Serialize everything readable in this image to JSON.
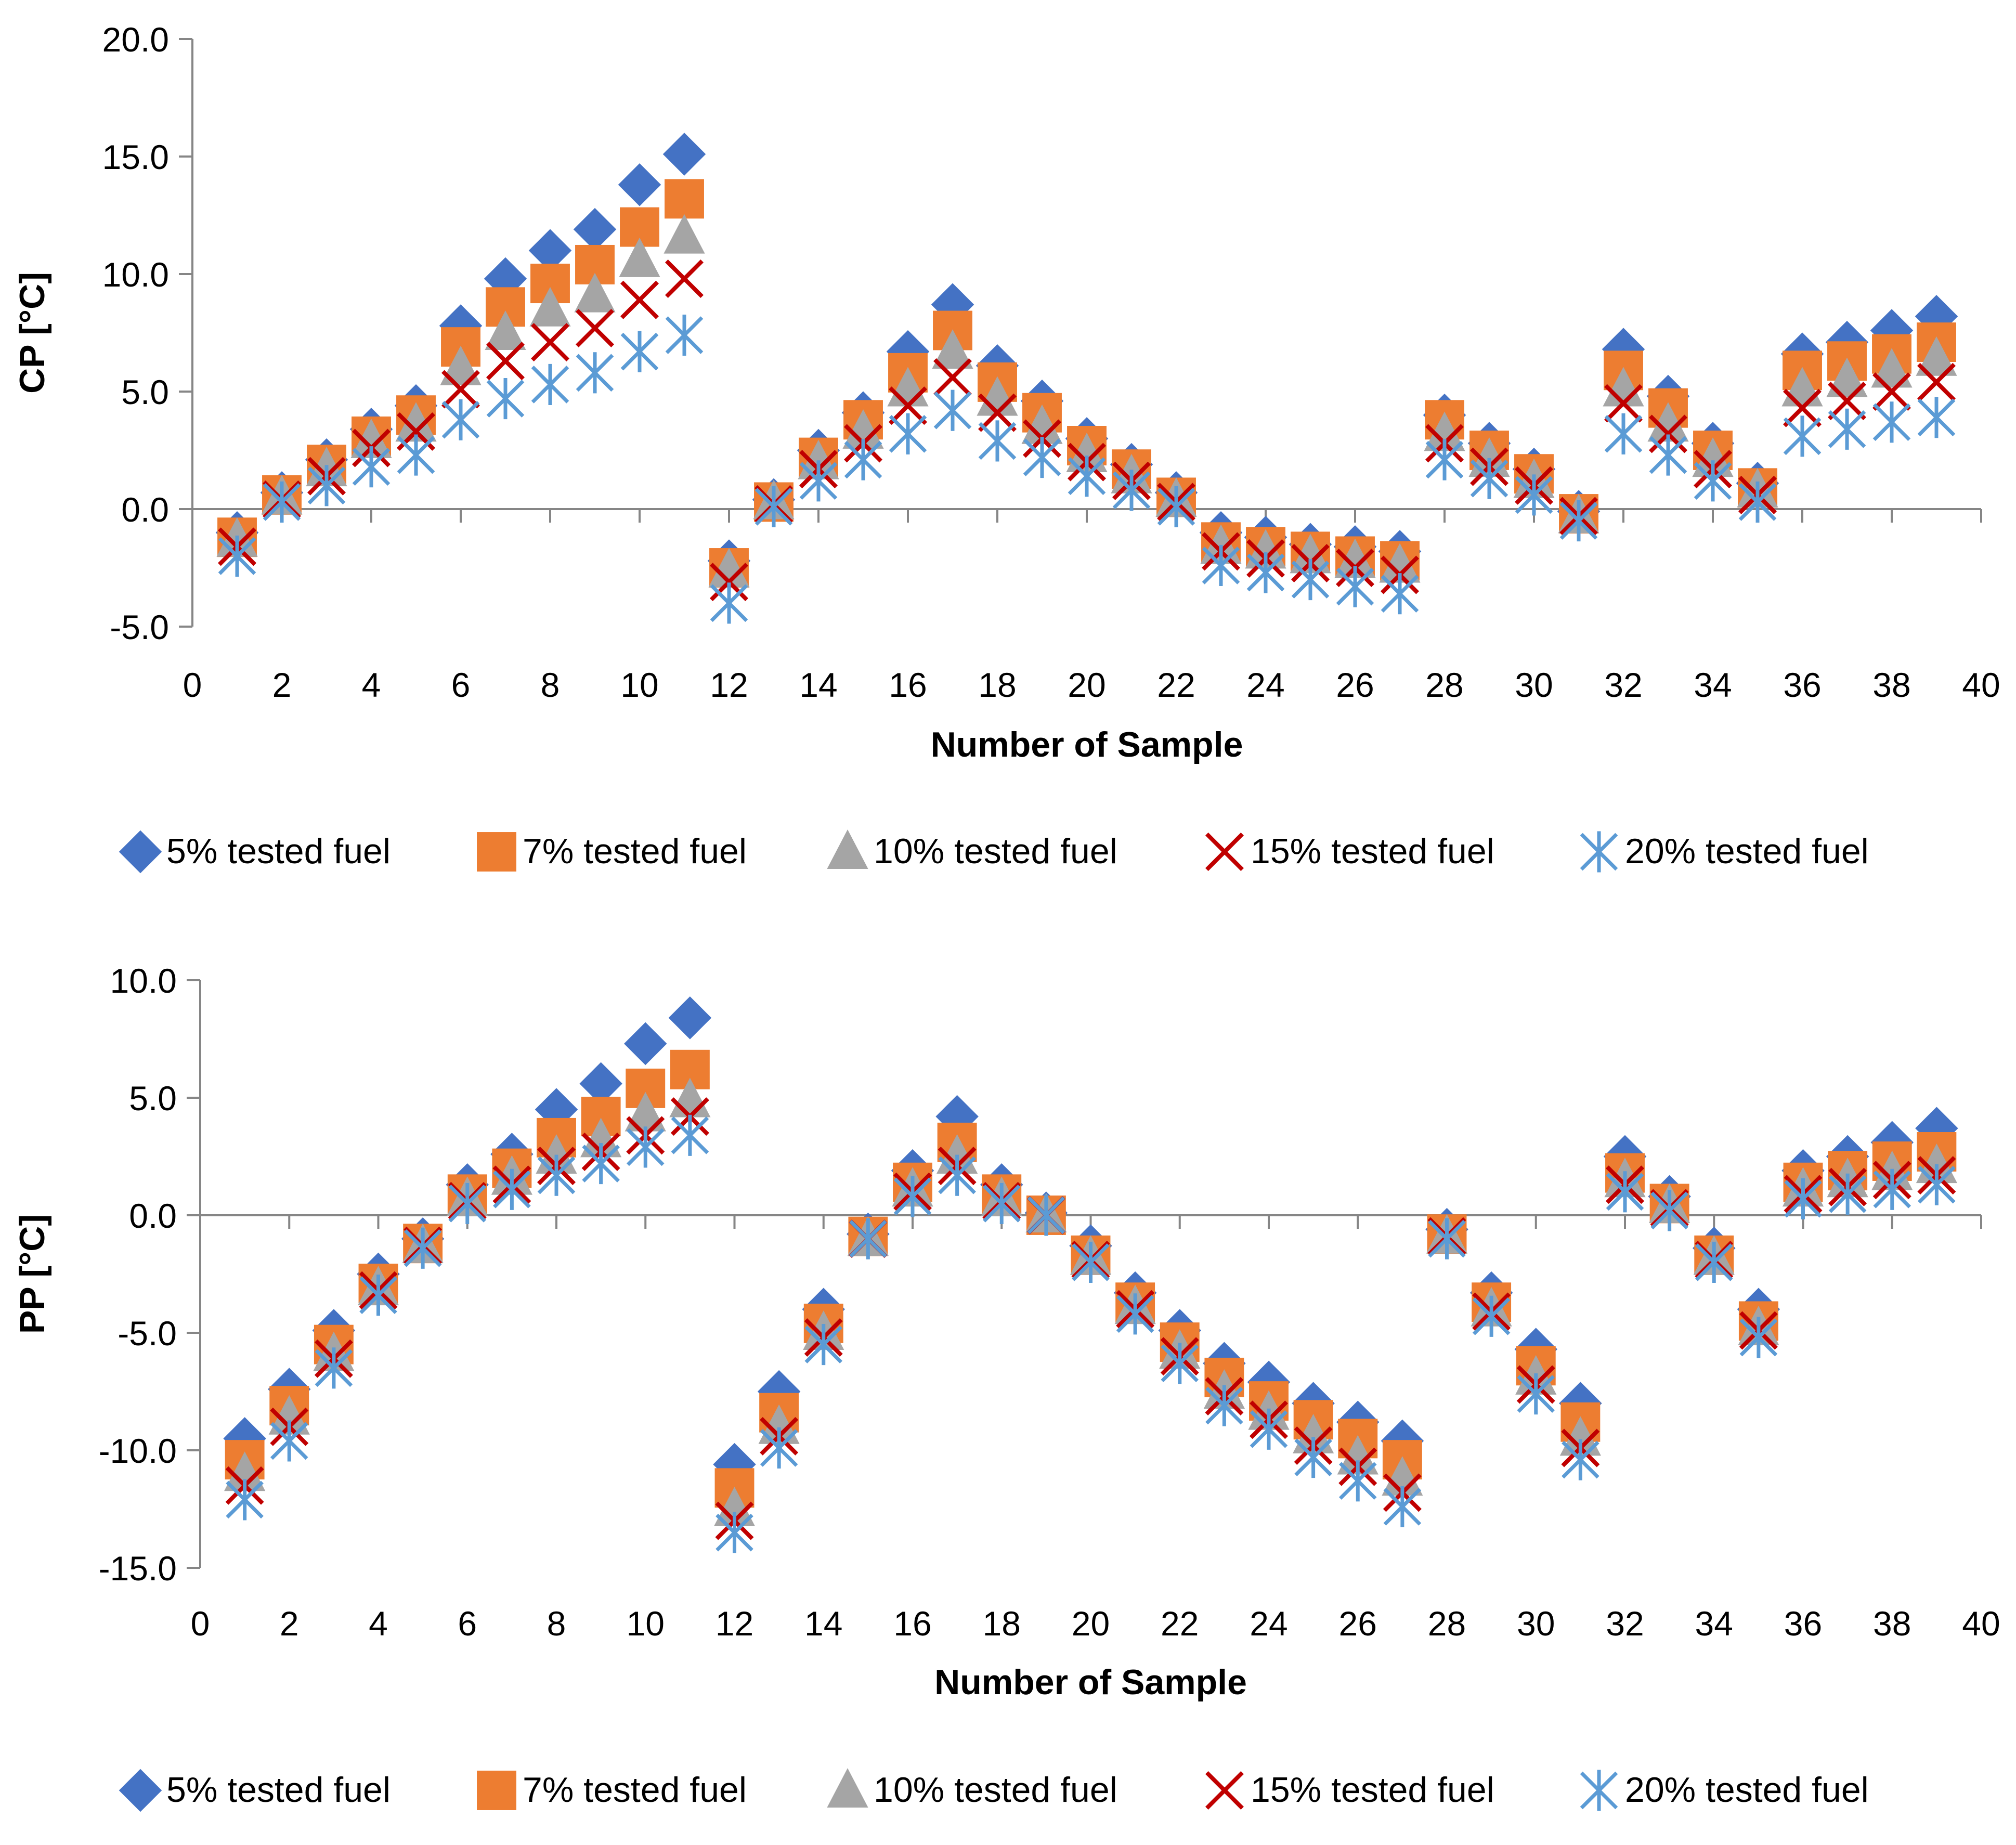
{
  "series_styles": [
    {
      "marker": "diamond-icon",
      "color": "#4472C4"
    },
    {
      "marker": "square-icon",
      "color": "#ED7D31"
    },
    {
      "marker": "triangle-icon",
      "color": "#A5A5A5"
    },
    {
      "marker": "x-icon",
      "color": "#C00000"
    },
    {
      "marker": "asterisk-icon",
      "color": "#5B9BD5"
    }
  ],
  "chart_data": [
    {
      "type": "scatter",
      "title": "",
      "xlabel": "Number of Sample",
      "ylabel": "CP [°C]",
      "xlim": [
        0,
        40
      ],
      "ylim": [
        -5,
        20
      ],
      "xticks": [
        "0",
        "2",
        "4",
        "6",
        "8",
        "10",
        "12",
        "14",
        "16",
        "18",
        "20",
        "22",
        "24",
        "26",
        "28",
        "30",
        "32",
        "34",
        "36",
        "38",
        "40"
      ],
      "yticks": [
        "-5.0",
        "0.0",
        "5.0",
        "10.0",
        "15.0",
        "20.0"
      ],
      "legend_position": "bottom",
      "x": [
        1,
        2,
        3,
        4,
        5,
        6,
        7,
        8,
        9,
        10,
        11,
        12,
        13,
        14,
        15,
        16,
        17,
        18,
        19,
        20,
        21,
        22,
        23,
        24,
        25,
        26,
        27,
        28,
        29,
        30,
        31,
        32,
        33,
        34,
        35,
        36,
        37,
        38,
        39
      ],
      "series": [
        {
          "name": "5% tested fuel",
          "values": [
            -1.0,
            0.7,
            2.1,
            3.4,
            4.4,
            7.8,
            9.8,
            11.0,
            11.9,
            13.8,
            15.1,
            -2.2,
            0.4,
            2.5,
            4.1,
            6.7,
            8.7,
            6.1,
            4.6,
            3.0,
            1.9,
            0.7,
            -1.0,
            -1.2,
            -1.5,
            -1.6,
            -1.8,
            4.0,
            2.8,
            1.7,
            -0.1,
            6.8,
            4.8,
            2.8,
            1.1,
            6.6,
            7.1,
            7.6,
            8.2
          ]
        },
        {
          "name": "7% tested fuel",
          "values": [
            -1.2,
            0.6,
            1.9,
            3.1,
            4.0,
            6.9,
            8.6,
            9.6,
            10.4,
            12.0,
            13.2,
            -2.5,
            0.3,
            2.2,
            3.8,
            5.8,
            7.6,
            5.4,
            4.1,
            2.7,
            1.7,
            0.5,
            -1.4,
            -1.6,
            -1.8,
            -2.0,
            -2.2,
            3.8,
            2.5,
            1.5,
            -0.2,
            5.9,
            4.3,
            2.5,
            0.9,
            5.9,
            6.3,
            6.6,
            7.1
          ]
        },
        {
          "name": "10% tested fuel",
          "values": [
            -1.3,
            0.5,
            1.7,
            2.9,
            3.6,
            6.0,
            7.5,
            8.5,
            9.1,
            10.6,
            11.6,
            -2.6,
            0.3,
            2.0,
            3.3,
            5.1,
            6.7,
            4.7,
            3.5,
            2.3,
            1.4,
            0.4,
            -1.6,
            -1.8,
            -2.0,
            -2.2,
            -2.4,
            3.2,
            2.1,
            1.2,
            -0.3,
            5.1,
            3.6,
            2.1,
            0.8,
            5.1,
            5.5,
            5.9,
            6.4
          ]
        },
        {
          "name": "15% tested fuel",
          "values": [
            -1.6,
            0.4,
            1.4,
            2.6,
            3.3,
            5.1,
            6.3,
            7.1,
            7.7,
            8.9,
            9.8,
            -3.1,
            0.2,
            1.7,
            2.8,
            4.4,
            5.6,
            4.1,
            3.0,
            2.0,
            1.2,
            0.3,
            -1.8,
            -2.1,
            -2.3,
            -2.5,
            -2.8,
            2.8,
            1.8,
            1.0,
            -0.3,
            4.5,
            3.2,
            1.7,
            0.6,
            4.3,
            4.6,
            5.0,
            5.4
          ]
        },
        {
          "name": "20% tested fuel",
          "values": [
            -2.0,
            0.3,
            1.0,
            1.8,
            2.3,
            3.8,
            4.7,
            5.3,
            5.8,
            6.7,
            7.4,
            -4.0,
            0.1,
            1.2,
            2.1,
            3.2,
            4.2,
            2.9,
            2.2,
            1.4,
            0.8,
            0.1,
            -2.4,
            -2.7,
            -3.0,
            -3.3,
            -3.6,
            2.1,
            1.3,
            0.6,
            -0.5,
            3.2,
            2.3,
            1.2,
            0.3,
            3.1,
            3.4,
            3.7,
            3.9
          ]
        }
      ]
    },
    {
      "type": "scatter",
      "title": "",
      "xlabel": "Number of Sample",
      "ylabel": "PP [°C]",
      "xlim": [
        0,
        40
      ],
      "ylim": [
        -15,
        10
      ],
      "xticks": [
        "0",
        "2",
        "4",
        "6",
        "8",
        "10",
        "12",
        "14",
        "16",
        "18",
        "20",
        "22",
        "24",
        "26",
        "28",
        "30",
        "32",
        "34",
        "36",
        "38",
        "40"
      ],
      "yticks": [
        "-15.0",
        "-10.0",
        "-5.0",
        "0.0",
        "5.0",
        "10.0"
      ],
      "legend_position": "bottom",
      "x": [
        1,
        2,
        3,
        4,
        5,
        6,
        7,
        8,
        9,
        10,
        11,
        12,
        13,
        14,
        15,
        16,
        17,
        18,
        19,
        20,
        21,
        22,
        23,
        24,
        25,
        26,
        27,
        28,
        29,
        30,
        31,
        32,
        33,
        34,
        35,
        36,
        37,
        38,
        39
      ],
      "series": [
        {
          "name": "5% tested fuel",
          "values": [
            -9.5,
            -7.4,
            -4.9,
            -2.5,
            -1.0,
            1.3,
            2.6,
            4.5,
            5.6,
            7.3,
            8.4,
            -10.6,
            -7.5,
            -4.0,
            -0.8,
            1.9,
            4.2,
            1.3,
            0.1,
            -1.3,
            -3.3,
            -4.9,
            -6.3,
            -7.1,
            -8.0,
            -8.8,
            -9.6,
            -0.6,
            -3.3,
            -5.7,
            -8.0,
            2.5,
            0.8,
            -1.4,
            -4.0,
            1.9,
            2.5,
            3.1,
            3.7
          ]
        },
        {
          "name": "7% tested fuel",
          "values": [
            -10.4,
            -8.1,
            -5.5,
            -2.9,
            -1.2,
            0.9,
            2.0,
            3.3,
            4.2,
            5.4,
            6.2,
            -11.6,
            -8.4,
            -4.6,
            -0.9,
            1.4,
            3.1,
            0.9,
            0.0,
            -1.7,
            -3.7,
            -5.4,
            -6.9,
            -7.9,
            -8.7,
            -9.5,
            -10.4,
            -0.8,
            -3.7,
            -6.4,
            -8.8,
            1.8,
            0.5,
            -1.7,
            -4.5,
            1.4,
            1.9,
            2.3,
            2.7
          ]
        },
        {
          "name": "10% tested fuel",
          "values": [
            -11.0,
            -8.6,
            -5.9,
            -3.1,
            -1.3,
            0.7,
            1.6,
            2.5,
            3.2,
            4.3,
            4.9,
            -12.5,
            -9.0,
            -5.0,
            -1.0,
            1.1,
            2.5,
            0.7,
            0.0,
            -1.8,
            -3.9,
            -5.8,
            -7.5,
            -8.4,
            -9.4,
            -10.3,
            -11.2,
            -0.9,
            -4.0,
            -6.9,
            -9.5,
            1.5,
            0.4,
            -1.8,
            -4.8,
            1.1,
            1.5,
            1.8,
            2.1
          ]
        },
        {
          "name": "15% tested fuel",
          "values": [
            -11.5,
            -9.0,
            -6.1,
            -3.2,
            -1.3,
            0.6,
            1.3,
            2.1,
            2.7,
            3.4,
            4.2,
            -13.0,
            -9.4,
            -5.2,
            -1.0,
            1.0,
            2.1,
            0.6,
            0.0,
            -1.9,
            -4.0,
            -6.0,
            -7.7,
            -8.7,
            -9.8,
            -10.7,
            -11.8,
            -0.9,
            -4.1,
            -7.2,
            -9.9,
            1.3,
            0.3,
            -1.9,
            -4.9,
            0.9,
            1.2,
            1.5,
            1.7
          ]
        },
        {
          "name": "20% tested fuel",
          "values": [
            -12.1,
            -9.6,
            -6.5,
            -3.4,
            -1.4,
            0.5,
            1.1,
            1.7,
            2.2,
            2.9,
            3.4,
            -13.5,
            -9.9,
            -5.5,
            -1.0,
            0.8,
            1.7,
            0.5,
            0.0,
            -2.0,
            -4.2,
            -6.3,
            -8.1,
            -9.1,
            -10.3,
            -11.3,
            -12.4,
            -1.0,
            -4.3,
            -7.6,
            -10.4,
            1.0,
            0.2,
            -2.0,
            -5.2,
            0.7,
            0.9,
            1.1,
            1.3
          ]
        }
      ]
    }
  ]
}
